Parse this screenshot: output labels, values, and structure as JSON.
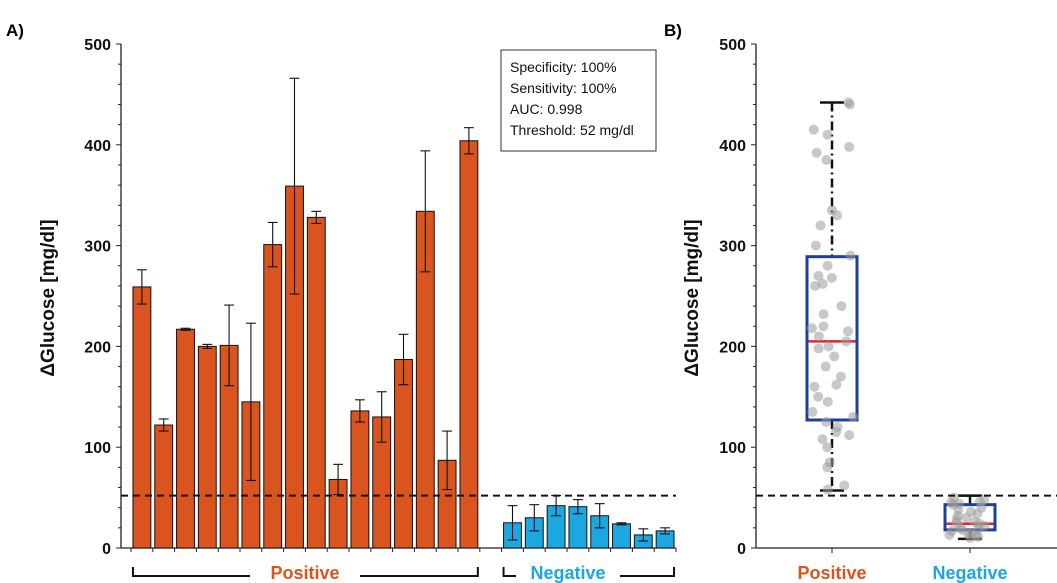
{
  "figure": {
    "panel_a_label": "A)",
    "panel_b_label": "B)",
    "ylabel_a": "ΔGlucose [mg/dl]",
    "ylabel_b": "ΔGlucose [mg/dl]",
    "group_positive_label": "Positive",
    "group_negative_label": "Negative",
    "annotation": {
      "specificity": "Specificity: 100%",
      "sensitivity": "Sensitivity: 100%",
      "auc": "AUC: 0.998",
      "threshold": "Threshold: 52 mg/dl"
    },
    "colors": {
      "positive": "#d9541e",
      "negative": "#1ba7e0",
      "box_edge": "#1f3f99",
      "median": "#e8202a",
      "points": "#9a9a9a"
    }
  },
  "chart_data": [
    {
      "type": "bar",
      "ylim": [
        0,
        500
      ],
      "yticks": [
        0,
        100,
        200,
        300,
        400,
        500
      ],
      "ylabel": "ΔGlucose [mg/dl]",
      "threshold": 52,
      "groups": [
        {
          "name": "Positive",
          "start": 0,
          "end": 16
        },
        {
          "name": "Negative",
          "start": 17,
          "end": 24
        }
      ],
      "series": [
        {
          "name": "Positive",
          "values": [
            259,
            122,
            217,
            200,
            201,
            145,
            301,
            359,
            328,
            68,
            136,
            130,
            187,
            334,
            87,
            404
          ],
          "errors": [
            17,
            6,
            1,
            2,
            40,
            78,
            22,
            107,
            6,
            15,
            11,
            25,
            25,
            60,
            29,
            13
          ]
        },
        {
          "name": "Negative",
          "values": [
            25,
            30,
            42,
            41,
            32,
            24,
            13,
            17
          ],
          "errors": [
            17,
            13,
            10,
            7,
            12,
            1,
            6,
            3
          ]
        }
      ]
    },
    {
      "type": "box",
      "ylim": [
        0,
        500
      ],
      "yticks": [
        0,
        100,
        200,
        300,
        400,
        500
      ],
      "ylabel": "ΔGlucose [mg/dl]",
      "categories": [
        "Positive",
        "Negative"
      ],
      "threshold": 52,
      "boxes": [
        {
          "name": "Positive",
          "whisker_low": 57,
          "q1": 127,
          "median": 205,
          "q3": 289,
          "whisker_high": 442,
          "points": [
            442,
            440,
            415,
            410,
            398,
            392,
            385,
            335,
            330,
            320,
            300,
            290,
            280,
            270,
            268,
            262,
            260,
            240,
            232,
            220,
            218,
            215,
            210,
            205,
            200,
            198,
            190,
            180,
            170,
            162,
            160,
            150,
            145,
            135,
            130,
            125,
            120,
            115,
            112,
            108,
            100,
            85,
            80,
            62,
            58
          ]
        },
        {
          "name": "Negative",
          "whisker_low": 9,
          "q1": 18,
          "median": 24,
          "q3": 43,
          "whisker_high": 52,
          "points": [
            50,
            48,
            46,
            45,
            44,
            43,
            40,
            38,
            36,
            34,
            32,
            30,
            28,
            26,
            25,
            24,
            22,
            20,
            19,
            18,
            17,
            15,
            14,
            13,
            12,
            11,
            10
          ]
        }
      ]
    }
  ]
}
